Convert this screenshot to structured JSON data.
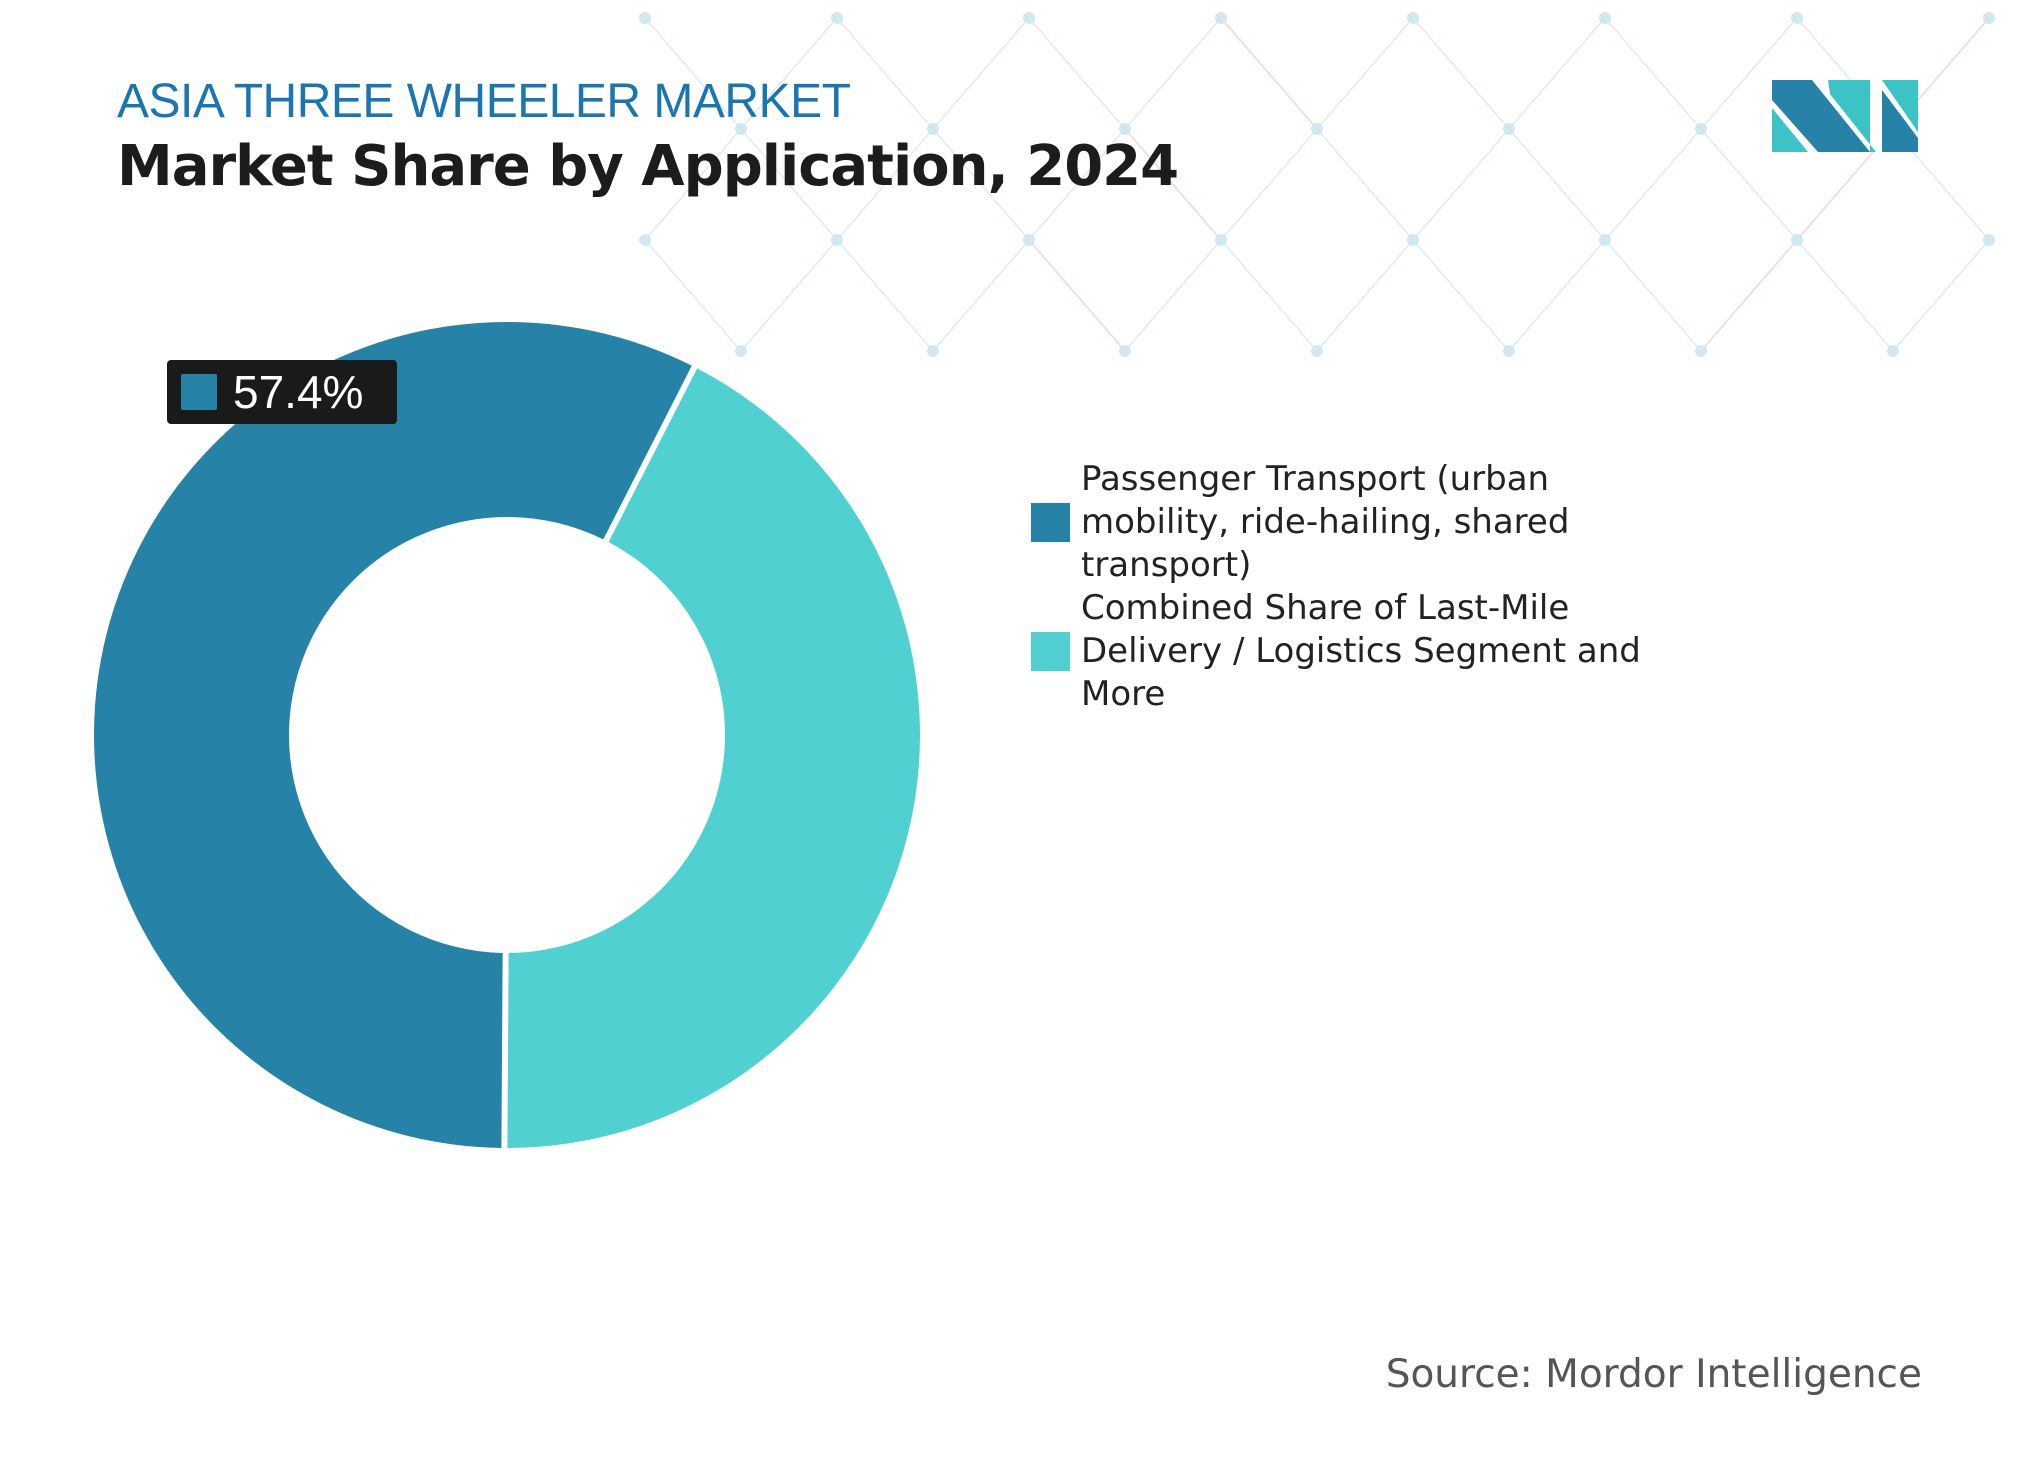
{
  "header": {
    "kicker": "ASIA THREE WHEELER MARKET",
    "title": "Market Share by Application, 2024"
  },
  "chart_data": {
    "type": "pie",
    "style": "donut",
    "categories": [
      "Passenger Transport (urban mobility, ride-hailing, shared transport)",
      "Combined Share of Last-Mile Delivery / Logistics Segment and More"
    ],
    "values": [
      57.4,
      42.6
    ],
    "unit": "%",
    "colors": [
      "#2782a8",
      "#51d0d2"
    ],
    "data_labels": [
      "57.4%"
    ],
    "legend_position": "right"
  },
  "label": {
    "text": "57.4%"
  },
  "legend": {
    "items": [
      {
        "label": "Passenger Transport (urban mobility, ride-hailing, shared transport)",
        "color": "#2782a8"
      },
      {
        "label": "Combined Share of Last-Mile Delivery / Logistics Segment and More",
        "color": "#51d0d2"
      }
    ]
  },
  "footer": {
    "source": "Source: Mordor Intelligence"
  },
  "logo": {
    "name": "mordor-intelligence-logo",
    "colors": [
      "#2782a8",
      "#3cc3c6"
    ]
  }
}
